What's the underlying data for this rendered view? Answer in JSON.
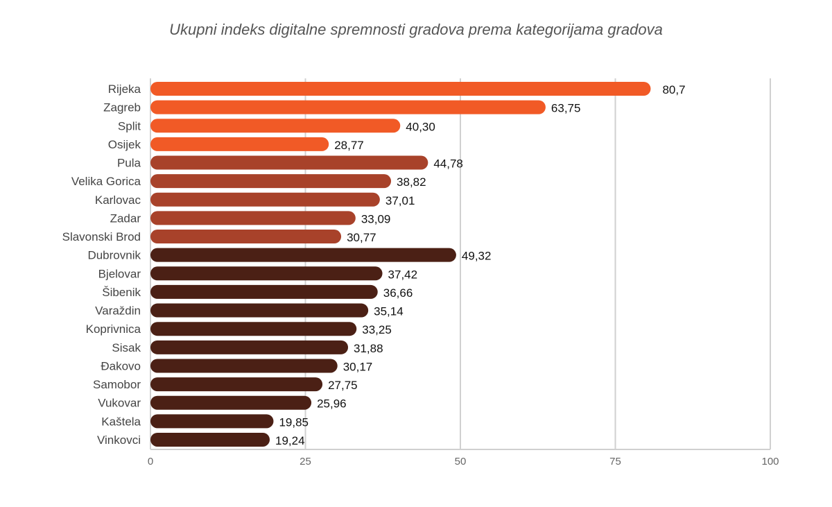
{
  "chart_data": {
    "type": "bar",
    "orientation": "horizontal",
    "title": "Ukupni indeks digitalne spremnosti gradova prema kategorijama gradova",
    "xlabel": "",
    "ylabel": "",
    "xlim": [
      0,
      100
    ],
    "xticks": [
      0,
      25,
      50,
      75,
      100
    ],
    "grid": true,
    "categories": [
      "Rijeka",
      "Zagreb",
      "Split",
      "Osijek",
      "Pula",
      "Velika Gorica",
      "Karlovac",
      "Zadar",
      "Slavonski Brod",
      "Dubrovnik",
      "Bjelovar",
      "Šibenik",
      "Varaždin",
      "Koprivnica",
      "Sisak",
      "Đakovo",
      "Samobor",
      "Vukovar",
      "Kaštela",
      "Vinkovci"
    ],
    "values": [
      80.7,
      63.75,
      40.3,
      28.77,
      44.78,
      38.82,
      37.01,
      33.09,
      30.77,
      49.32,
      37.42,
      36.66,
      35.14,
      33.25,
      31.88,
      30.17,
      27.75,
      25.96,
      19.85,
      19.24
    ],
    "value_labels": [
      "80,7",
      "63,75",
      "40,30",
      "28,77",
      "44,78",
      "38,82",
      "37,01",
      "33,09",
      "30,77",
      "49,32",
      "37,42",
      "36,66",
      "35,14",
      "33,25",
      "31,88",
      "30,17",
      "27,75",
      "25,96",
      "19,85",
      "19,24"
    ],
    "groups": [
      0,
      0,
      0,
      0,
      1,
      1,
      1,
      1,
      1,
      2,
      2,
      2,
      2,
      2,
      2,
      2,
      2,
      2,
      2,
      2
    ],
    "group_colors": [
      "#F15A26",
      "#A8422A",
      "#4B2015"
    ]
  }
}
